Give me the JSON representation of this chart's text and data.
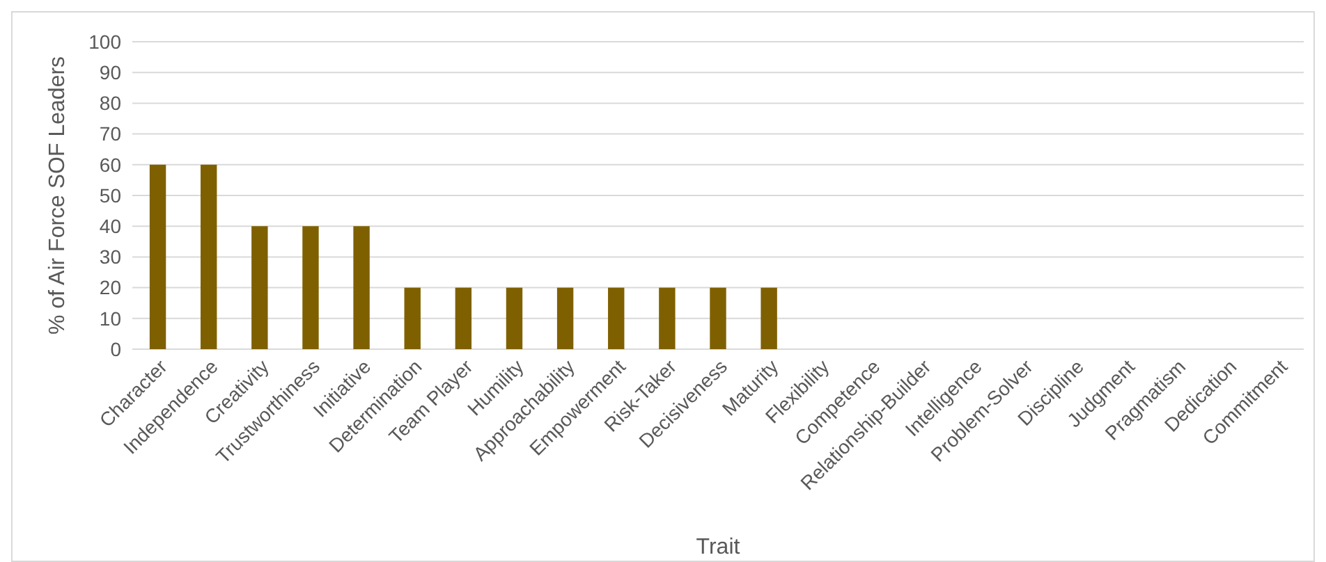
{
  "chart_data": {
    "type": "bar",
    "xlabel": "Trait",
    "ylabel": "% of Air Force SOF Leaders",
    "categories": [
      "Character",
      "Independence",
      "Creativity",
      "Trustworthiness",
      "Initiative",
      "Determination",
      "Team Player",
      "Humility",
      "Approachability",
      "Empowerment",
      "Risk-Taker",
      "Decisiveness",
      "Maturity",
      "Flexibility",
      "Competence",
      "Relationship-Builder",
      "Intelligence",
      "Problem-Solver",
      "Discipline",
      "Judgment",
      "Pragmatism",
      "Dedication",
      "Commitment"
    ],
    "values": [
      60,
      60,
      40,
      40,
      40,
      20,
      20,
      20,
      20,
      20,
      20,
      20,
      20,
      0,
      0,
      0,
      0,
      0,
      0,
      0,
      0,
      0,
      0
    ],
    "color": "#7f6000",
    "ylim": [
      0,
      100
    ],
    "yticks": [
      0,
      10,
      20,
      30,
      40,
      50,
      60,
      70,
      80,
      90,
      100
    ],
    "grid": "y"
  }
}
